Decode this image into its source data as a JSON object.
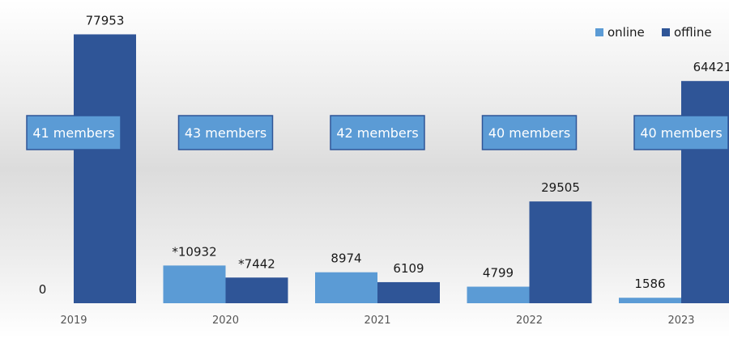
{
  "chart_data": {
    "type": "bar",
    "categories": [
      "2019",
      "2020",
      "2021",
      "2022",
      "2023"
    ],
    "series": [
      {
        "name": "online",
        "color": "#5B9BD5",
        "values": [
          0,
          10932,
          8974,
          4799,
          1586
        ],
        "labels": [
          "0",
          "*10932",
          "8974",
          "4799",
          "1586"
        ]
      },
      {
        "name": "offline",
        "color": "#2F5597",
        "values": [
          77953,
          7442,
          6109,
          29505,
          64421
        ],
        "labels": [
          "77953",
          "*7442",
          "6109",
          "29505",
          "64421"
        ]
      }
    ],
    "annotations": [
      "41 members",
      "43 members",
      "42 members",
      "40 members",
      "40 members"
    ],
    "title": "",
    "xlabel": "",
    "ylabel": "",
    "ylim": [
      0,
      80000
    ],
    "grid": false,
    "legend_position": "top-right",
    "box_color": "#5B9BD5",
    "box_border": "#2F5597"
  }
}
